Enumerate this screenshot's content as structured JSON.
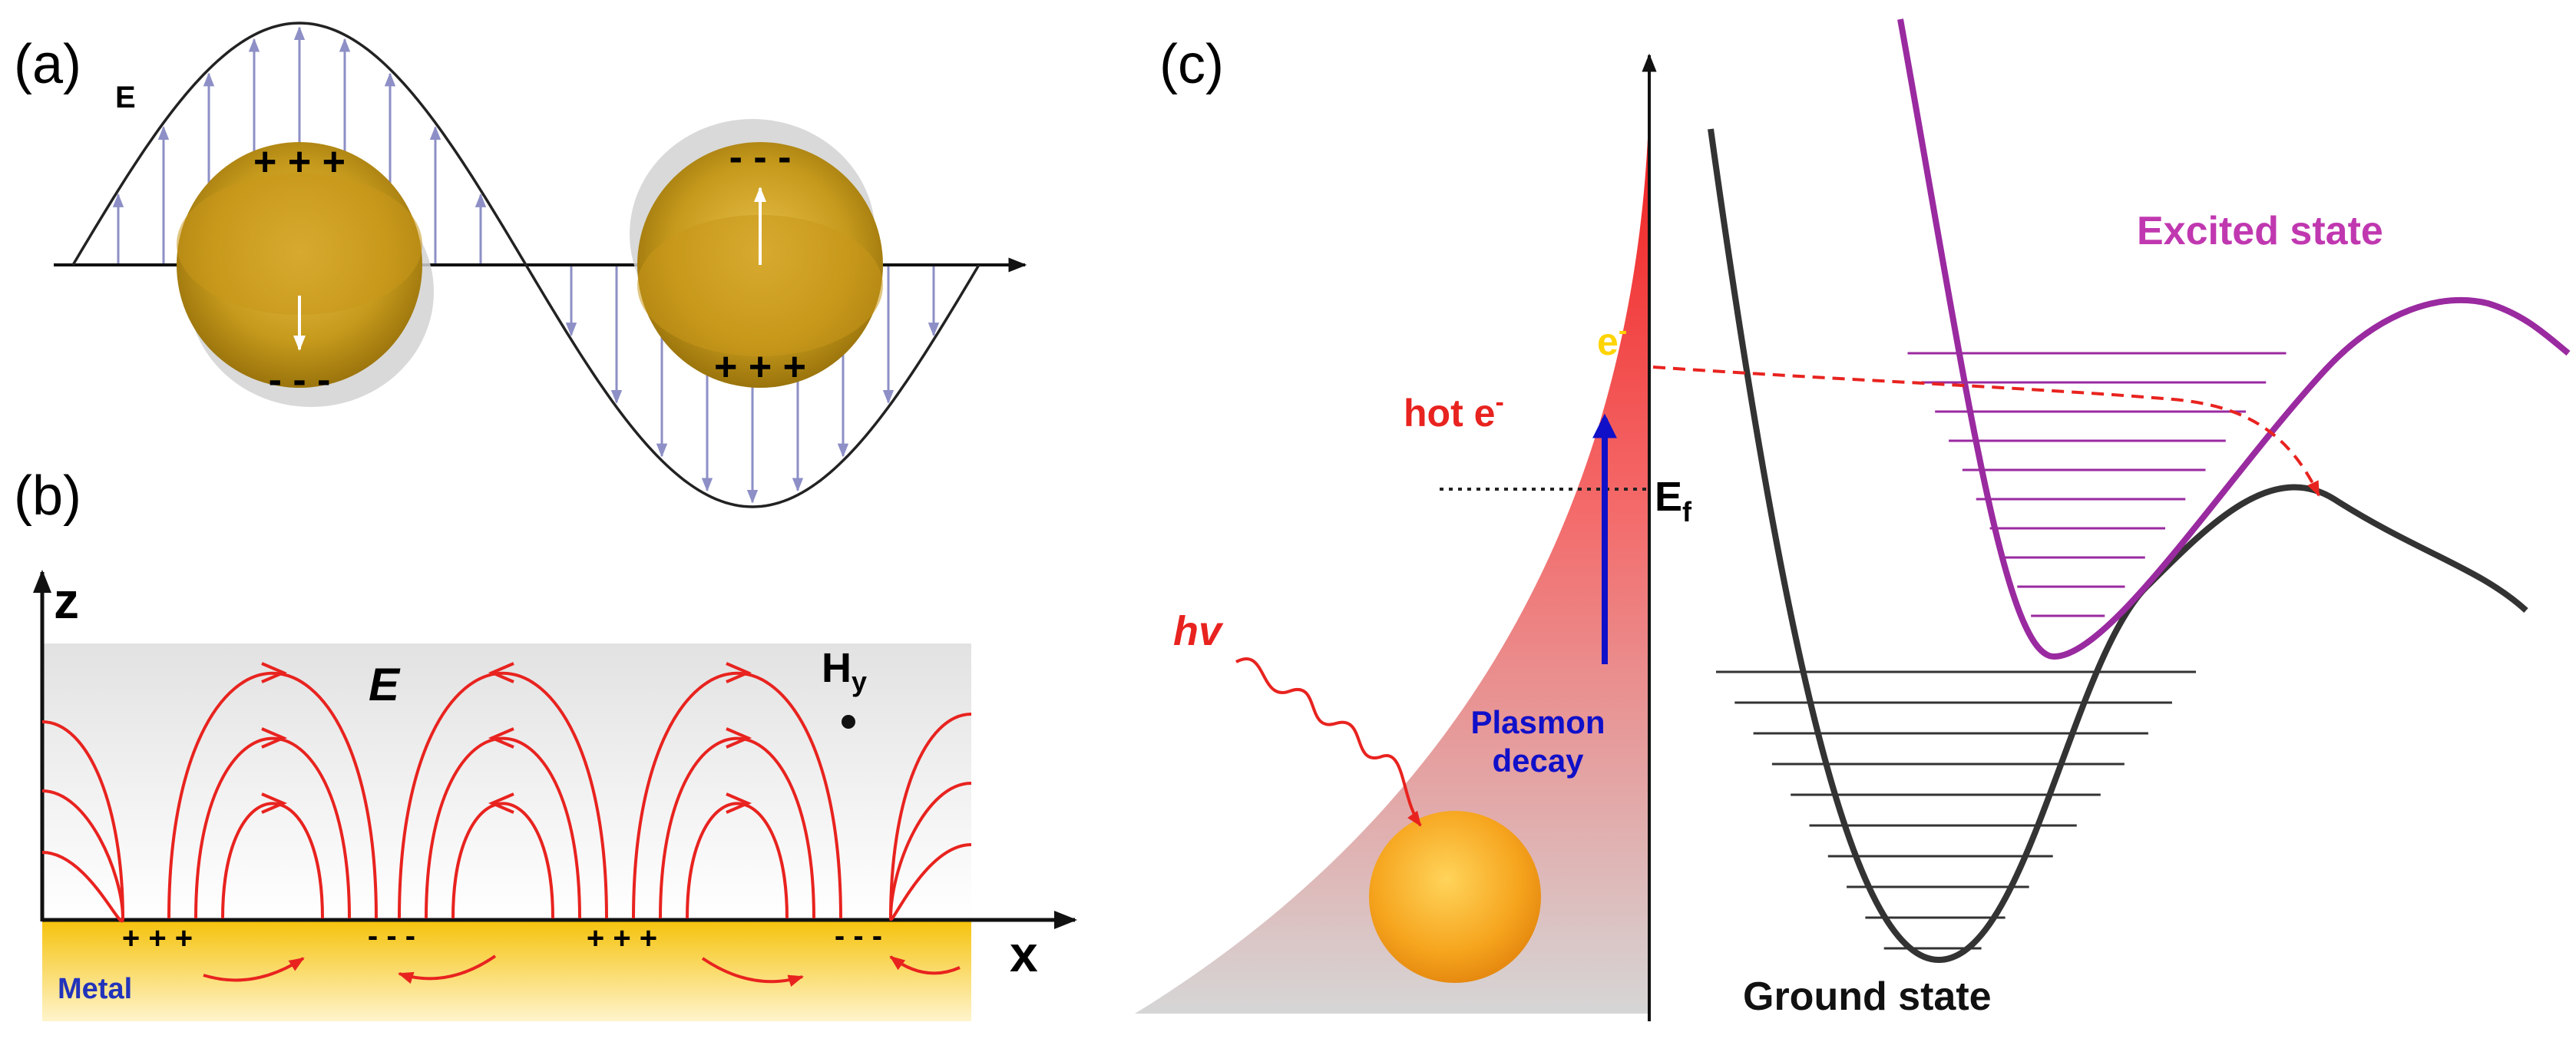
{
  "panel_a": {
    "label": "(a)",
    "field_label": "E",
    "charges_top_left": "+ + +",
    "charges_bottom_left": "- - -",
    "charges_top_right": "- - -",
    "charges_bottom_right": "+ + +"
  },
  "panel_b": {
    "label": "(b)",
    "z_label": "z",
    "x_label": "x",
    "field_label": "E",
    "h_label": "H",
    "h_sub": "y",
    "metal_label": "Metal",
    "charges": [
      "+ + +",
      "- - -",
      "+ + +",
      "- - -"
    ]
  },
  "panel_c": {
    "label": "(c)",
    "hv_label": "hv",
    "hot_e_label": "hot e",
    "hot_e_sup": "-",
    "e_label": "e",
    "e_sup": "-",
    "ef_label": "E",
    "ef_sub": "f",
    "decay_line1": "Plasmon",
    "decay_line2": "decay",
    "excited_label": "Excited state",
    "ground_label": "Ground state"
  },
  "colors": {
    "gold": "#c89a16",
    "red": "#e8231f",
    "purple": "#9a2aa0",
    "blue": "#1010c8",
    "arrow_lilac": "#8d8fc6",
    "excited_text": "#c038b0",
    "curve_dark": "#333333"
  }
}
